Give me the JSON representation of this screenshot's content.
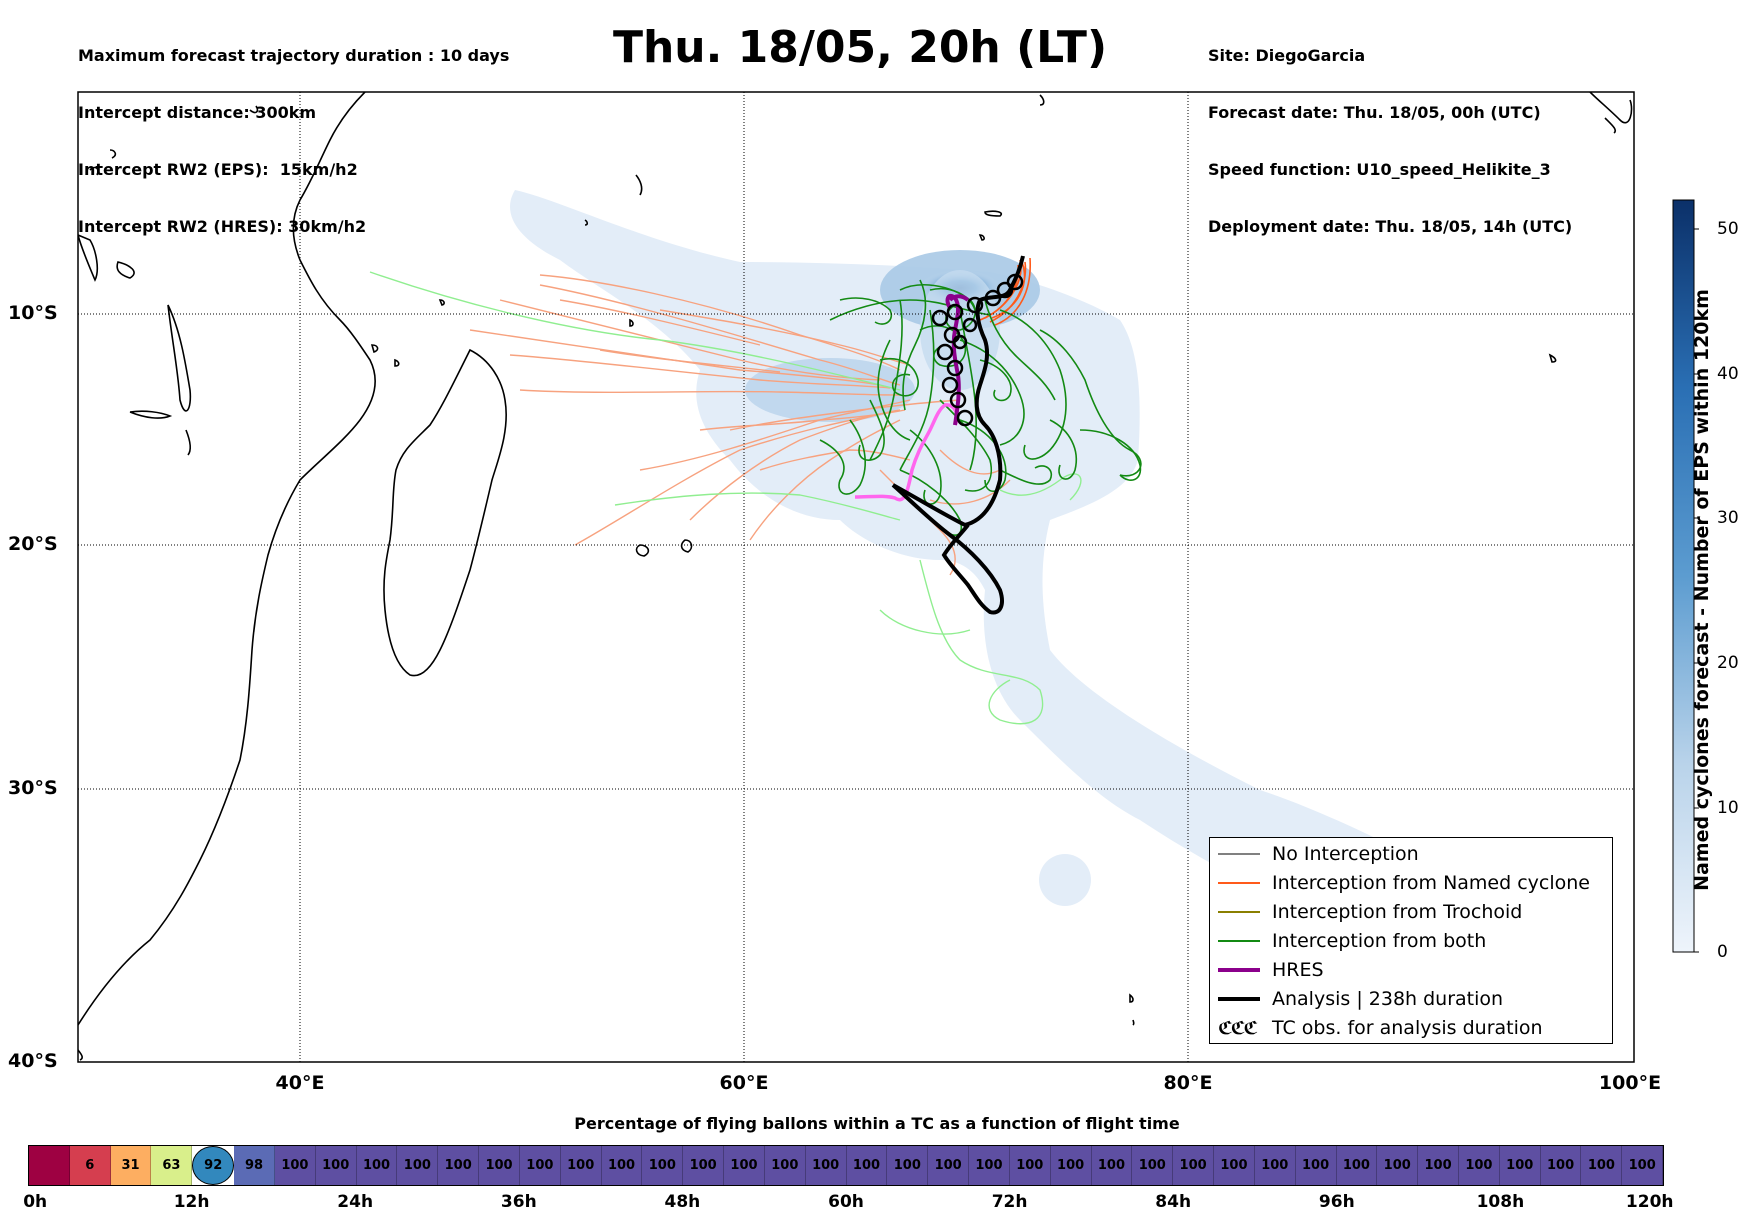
{
  "header": {
    "left_lines": [
      "Maximum forecast trajectory duration : 10 days",
      "Intercept distance: 300km",
      "Intercept RW2 (EPS):  15km/h2",
      "Intercept RW2 (HRES): 30km/h2"
    ],
    "title": "Thu. 18/05, 20h (LT)",
    "right_lines": [
      "Site: DiegoGarcia",
      "Forecast date: Thu. 18/05, 00h (UTC)",
      "Speed function: U10_speed_Helikite_3",
      "Deployment date: Thu. 18/05, 14h (UTC)"
    ]
  },
  "map": {
    "lat_labels": [
      "10°S",
      "20°S",
      "30°S",
      "40°S"
    ],
    "lon_labels": [
      "40°E",
      "60°E",
      "80°E",
      "100°E"
    ],
    "lon_range": [
      30,
      100
    ],
    "lat_range": [
      -40,
      0
    ],
    "colors": {
      "no_interception": "#808080",
      "named_cyclone": "#ff6a2a",
      "named_cyclone_light": "#f7a27f",
      "trochoid": "#8a7f00",
      "both": "#138a13",
      "both_light": "#90ee90",
      "hres": "#8b008b",
      "hres_light": "#ff66ee",
      "analysis": "#000000",
      "density": "#c9dcf0"
    }
  },
  "legend": {
    "items": [
      {
        "label": "No Interception",
        "color": "#808080",
        "style": "thin"
      },
      {
        "label": "Interception from Named cyclone",
        "color": "#ff5a1a",
        "style": "thin"
      },
      {
        "label": "Interception from Trochoid",
        "color": "#8a7f00",
        "style": "thin"
      },
      {
        "label": "Interception from both",
        "color": "#138a13",
        "style": "thin"
      },
      {
        "label": "HRES",
        "color": "#8b008b",
        "style": "thick"
      },
      {
        "label": "Analysis | 238h duration",
        "color": "#000000",
        "style": "thick"
      },
      {
        "label": "TC obs. for analysis duration",
        "color": "#000000",
        "style": "symbol"
      }
    ],
    "symbol_text": "ℭℭℭ"
  },
  "colorbar": {
    "title": "Named cyclones forecast - Number of EPS within 120km",
    "ticks": [
      "0",
      "10",
      "20",
      "30",
      "40",
      "50"
    ],
    "range": [
      0,
      52
    ]
  },
  "percentage_bar": {
    "title": "Percentage of flying ballons within a TC as a function of flight time",
    "values": [
      "",
      "6",
      "31",
      "63",
      "92",
      "98",
      "100",
      "100",
      "100",
      "100",
      "100",
      "100",
      "100",
      "100",
      "100",
      "100",
      "100",
      "100",
      "100",
      "100",
      "100",
      "100",
      "100",
      "100",
      "100",
      "100",
      "100",
      "100",
      "100",
      "100",
      "100",
      "100",
      "100",
      "100",
      "100",
      "100",
      "100",
      "100",
      "100",
      "100"
    ],
    "colors": [
      "#9e0142",
      "#d53e4f",
      "#fdae61",
      "#d9ef8b",
      "#3288bd",
      "#5b6bb5",
      "#5e4fa2"
    ],
    "time_labels": [
      "0h",
      "12h",
      "24h",
      "36h",
      "48h",
      "60h",
      "72h",
      "84h",
      "96h",
      "108h",
      "120h"
    ]
  }
}
